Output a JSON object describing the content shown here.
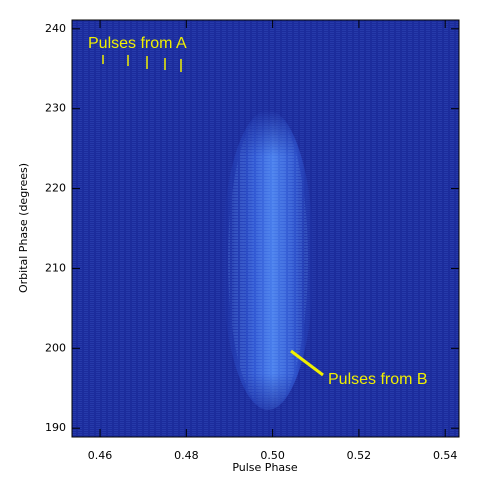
{
  "chart_data": {
    "type": "image",
    "xlabel": "Pulse Phase",
    "ylabel": "Orbital Phase (degrees)",
    "xlim": [
      0.4535,
      0.5432
    ],
    "ylim": [
      188.9,
      241.1
    ],
    "xticks": [
      {
        "value": 0.46,
        "label": "0.46"
      },
      {
        "value": 0.48,
        "label": "0.48"
      },
      {
        "value": 0.5,
        "label": "0.50"
      },
      {
        "value": 0.52,
        "label": "0.52"
      },
      {
        "value": 0.54,
        "label": "0.54"
      }
    ],
    "yticks": [
      190,
      200,
      210,
      220,
      230,
      240
    ],
    "annotations": [
      "Pulses from A",
      "Pulses from B"
    ],
    "annotation_color": "#f0f000"
  }
}
